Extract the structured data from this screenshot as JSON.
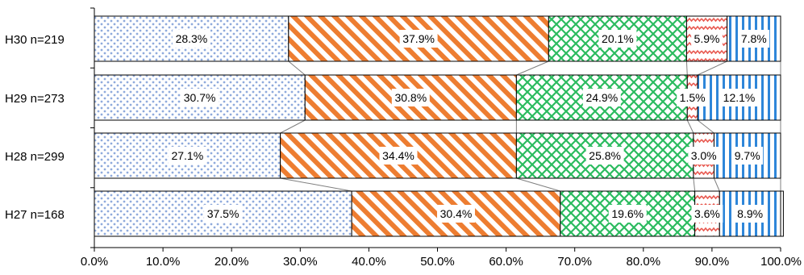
{
  "chart_data": {
    "type": "bar",
    "orientation": "horizontal",
    "stacked": "100%",
    "categories": [
      "H30 n=219",
      "H29 n=273",
      "H28 n=299",
      "H27 n=168"
    ],
    "series": [
      {
        "values": [
          28.3,
          30.7,
          27.1,
          37.5
        ],
        "labels": [
          "28.3%",
          "30.7%",
          "27.1%",
          "37.5%"
        ],
        "pattern": "dots",
        "color": "#8FAADC"
      },
      {
        "values": [
          37.9,
          30.8,
          34.4,
          30.4
        ],
        "labels": [
          "37.9%",
          "30.8%",
          "34.4%",
          "30.4%"
        ],
        "pattern": "diagonal-stripes",
        "color": "#ED7D31"
      },
      {
        "values": [
          20.1,
          24.9,
          25.8,
          19.6
        ],
        "labels": [
          "20.1%",
          "24.9%",
          "25.8%",
          "19.6%"
        ],
        "pattern": "cross-hatch",
        "color": "#2BBB5F"
      },
      {
        "values": [
          5.9,
          1.5,
          3.0,
          3.6
        ],
        "labels": [
          "5.9%",
          "1.5%",
          "3.0%",
          "3.6%"
        ],
        "pattern": "zigzag",
        "color": "#E8584F"
      },
      {
        "values": [
          7.8,
          12.1,
          9.7,
          8.9
        ],
        "labels": [
          "7.8%",
          "12.1%",
          "9.7%",
          "8.9%"
        ],
        "pattern": "vertical-stripes",
        "color": "#2E86D9"
      },
      {
        "values": [
          0.0,
          0.0,
          0.0,
          0.4
        ],
        "labels": [
          "",
          "",
          "",
          ""
        ],
        "pattern": "solid",
        "color": "#FFFFFF"
      }
    ],
    "x_ticks": [
      "0.0%",
      "10.0%",
      "20.0%",
      "30.0%",
      "40.0%",
      "50.0%",
      "60.0%",
      "70.0%",
      "80.0%",
      "90.0%",
      "100.0%"
    ],
    "xlim": [
      0,
      100
    ],
    "series_lines": true,
    "grid": false,
    "legend": "none",
    "title": "",
    "xlabel": "",
    "ylabel": ""
  }
}
